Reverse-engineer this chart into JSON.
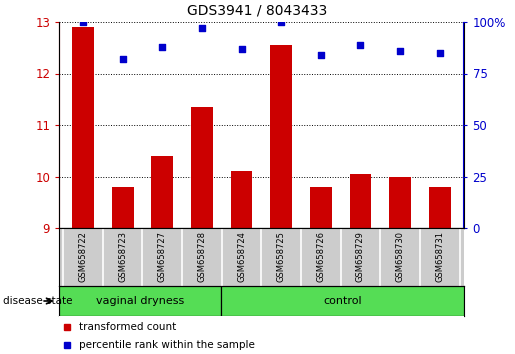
{
  "title": "GDS3941 / 8043433",
  "samples": [
    "GSM658722",
    "GSM658723",
    "GSM658727",
    "GSM658728",
    "GSM658724",
    "GSM658725",
    "GSM658726",
    "GSM658729",
    "GSM658730",
    "GSM658731"
  ],
  "bar_values": [
    12.9,
    9.8,
    10.4,
    11.35,
    10.1,
    12.55,
    9.8,
    10.05,
    10.0,
    9.8
  ],
  "percentile_values": [
    100,
    82,
    88,
    97,
    87,
    100,
    84,
    89,
    86,
    85
  ],
  "ylim_left": [
    9,
    13
  ],
  "ylim_right": [
    0,
    100
  ],
  "yticks_left": [
    9,
    10,
    11,
    12,
    13
  ],
  "yticks_right": [
    0,
    25,
    50,
    75,
    100
  ],
  "ytick_labels_right": [
    "0",
    "25",
    "50",
    "75",
    "100%"
  ],
  "bar_color": "#cc0000",
  "dot_color": "#0000cc",
  "grid_color": "#000000",
  "bg_color": "#ffffff",
  "group1_label": "vaginal dryness",
  "group1_count": 4,
  "group2_label": "control",
  "group2_count": 6,
  "group_color": "#55dd55",
  "sample_box_color": "#cccccc",
  "legend_bar_label": "transformed count",
  "legend_dot_label": "percentile rank within the sample",
  "disease_state_label": "disease state",
  "tick_label_color_left": "#cc0000",
  "tick_label_color_right": "#0000cc"
}
